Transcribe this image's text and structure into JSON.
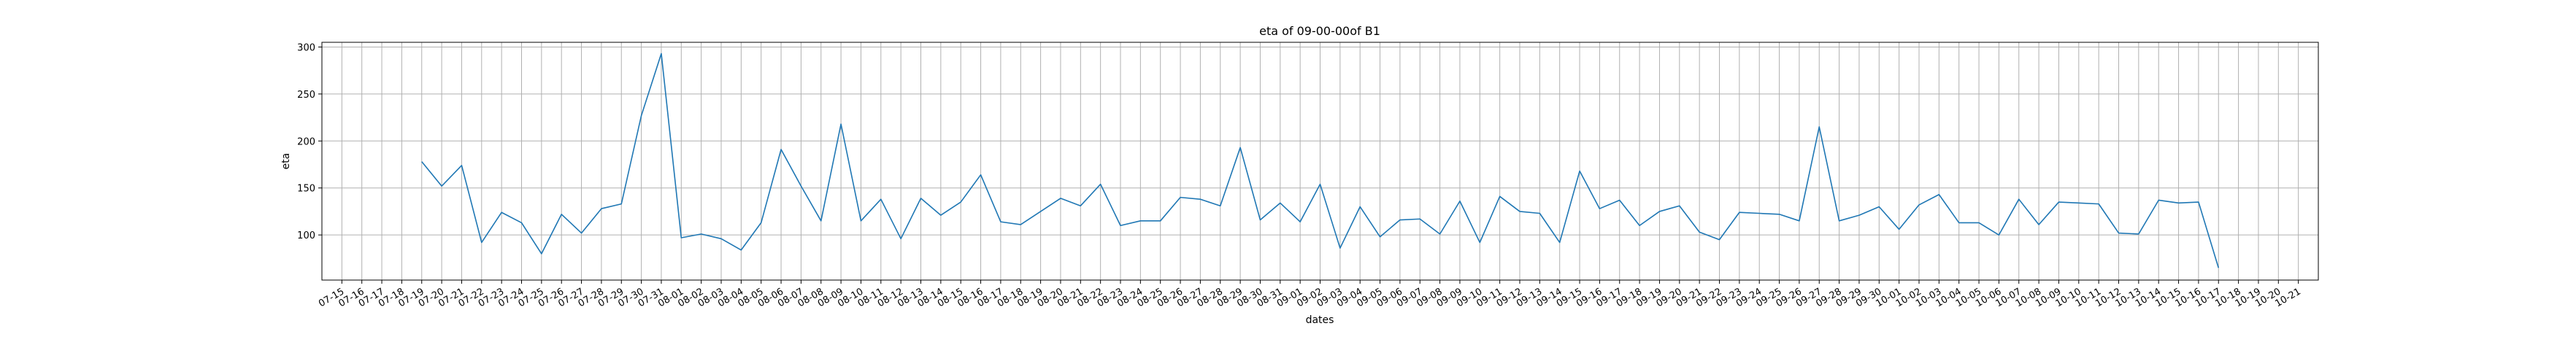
{
  "chart_data": {
    "type": "line",
    "title": "eta of 09-00-00of B1",
    "xlabel": "dates",
    "ylabel": "eta",
    "grid": true,
    "legend": "none",
    "colors": {
      "line": "#1f77b4",
      "grid": "#b0b0b0",
      "axes": "#000000"
    },
    "ylim": [
      52,
      305
    ],
    "yticks": [
      100,
      150,
      200,
      250,
      300
    ],
    "xlim": [
      "07-14",
      "10-22"
    ],
    "x": [
      "07-15",
      "07-16",
      "07-17",
      "07-18",
      "07-19",
      "07-20",
      "07-21",
      "07-22",
      "07-23",
      "07-24",
      "07-25",
      "07-26",
      "07-27",
      "07-28",
      "07-29",
      "07-30",
      "07-31",
      "08-01",
      "08-02",
      "08-03",
      "08-04",
      "08-05",
      "08-06",
      "08-07",
      "08-08",
      "08-09",
      "08-10",
      "08-11",
      "08-12",
      "08-13",
      "08-14",
      "08-15",
      "08-16",
      "08-17",
      "08-18",
      "08-19",
      "08-20",
      "08-21",
      "08-22",
      "08-23",
      "08-24",
      "08-25",
      "08-26",
      "08-27",
      "08-28",
      "08-29",
      "08-30",
      "08-31",
      "09-01",
      "09-02",
      "09-03",
      "09-04",
      "09-05",
      "09-06",
      "09-07",
      "09-08",
      "09-09",
      "09-10",
      "09-11",
      "09-12",
      "09-13",
      "09-14",
      "09-15",
      "09-16",
      "09-17",
      "09-18",
      "09-19",
      "09-20",
      "09-21",
      "09-22",
      "09-23",
      "09-24",
      "09-25",
      "09-26",
      "09-27",
      "09-28",
      "09-29",
      "09-30",
      "10-01",
      "10-02",
      "10-03",
      "10-04",
      "10-05",
      "10-06",
      "10-07",
      "10-08",
      "10-09",
      "10-10",
      "10-11",
      "10-12",
      "10-13",
      "10-14",
      "10-15",
      "10-16",
      "10-17",
      "10-18",
      "10-19",
      "10-20",
      "10-21"
    ],
    "series": [
      {
        "x": [
          "07-19",
          "07-20",
          "07-21",
          "07-22",
          "07-23",
          "07-24",
          "07-25",
          "07-26",
          "07-27",
          "07-28",
          "07-29",
          "07-30",
          "07-31",
          "08-01",
          "08-02",
          "08-03",
          "08-04",
          "08-05",
          "08-06",
          "08-07",
          "08-08",
          "08-09",
          "08-10",
          "08-11",
          "08-12",
          "08-13",
          "08-14",
          "08-15",
          "08-16",
          "08-17",
          "08-18",
          "08-19",
          "08-20",
          "08-21",
          "08-22",
          "08-23",
          "08-24",
          "08-25",
          "08-26",
          "08-27",
          "08-28",
          "08-29",
          "08-30",
          "08-31",
          "09-01",
          "09-02",
          "09-03",
          "09-04",
          "09-05",
          "09-06",
          "09-07",
          "09-08",
          "09-09",
          "09-10",
          "09-11",
          "09-12",
          "09-13",
          "09-14",
          "09-15",
          "09-16",
          "09-17",
          "09-18",
          "09-19",
          "09-20",
          "09-21",
          "09-22",
          "09-23",
          "09-24",
          "09-25",
          "09-26",
          "09-27",
          "09-28",
          "09-29",
          "09-30",
          "10-01",
          "10-02",
          "10-03",
          "10-04",
          "10-05",
          "10-06",
          "10-07",
          "10-08",
          "10-09",
          "10-10",
          "10-11",
          "10-12",
          "10-13",
          "10-14",
          "10-15",
          "10-16",
          "10-17"
        ],
        "values": [
          178,
          152,
          174,
          92,
          124,
          113,
          80,
          122,
          102,
          128,
          133,
          227,
          293,
          97,
          101,
          96,
          84,
          113,
          191,
          152,
          115,
          218,
          115,
          138,
          96,
          139,
          121,
          135,
          164,
          114,
          111,
          125,
          139,
          131,
          154,
          110,
          115,
          115,
          140,
          138,
          131,
          193,
          116,
          134,
          114,
          154,
          86,
          130,
          98,
          116,
          117,
          101,
          136,
          92,
          141,
          125,
          123,
          92,
          168,
          128,
          137,
          110,
          125,
          131,
          103,
          95,
          124,
          123,
          122,
          115,
          215,
          115,
          121,
          130,
          106,
          132,
          143,
          113,
          113,
          100,
          138,
          111,
          135,
          134,
          133,
          102,
          101,
          137,
          134,
          135,
          65
        ]
      }
    ]
  }
}
